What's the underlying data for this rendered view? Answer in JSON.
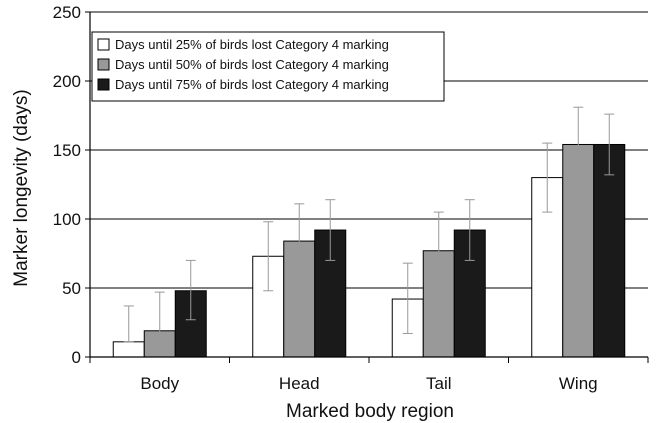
{
  "chart_data": {
    "type": "bar",
    "title": "",
    "xlabel": "Marked body region",
    "ylabel": "Marker longevity (days)",
    "ylim": [
      0,
      250
    ],
    "yticks": [
      0,
      50,
      100,
      150,
      200,
      250
    ],
    "grid": true,
    "legend_position": "top-left",
    "categories": [
      "Body",
      "Head",
      "Tail",
      "Wing"
    ],
    "series": [
      {
        "name": "Days until 25% of birds lost Category 4 marking",
        "color": "#ffffff",
        "values": [
          11,
          73,
          42,
          130
        ],
        "error": [
          [
            11,
            37
          ],
          [
            48,
            98
          ],
          [
            17,
            68
          ],
          [
            105,
            155
          ]
        ]
      },
      {
        "name": "Days until 50% of birds lost Category 4 marking",
        "color": "#999999",
        "values": [
          19,
          84,
          77,
          154
        ],
        "error": [
          [
            0,
            47
          ],
          [
            57,
            111
          ],
          [
            50,
            105
          ],
          [
            127,
            181
          ]
        ]
      },
      {
        "name": "Days until 75% of birds lost Category 4 marking",
        "color": "#1a1a1a",
        "values": [
          48,
          92,
          92,
          154
        ],
        "error": [
          [
            27,
            70
          ],
          [
            70,
            114
          ],
          [
            70,
            114
          ],
          [
            132,
            176
          ]
        ]
      }
    ]
  }
}
